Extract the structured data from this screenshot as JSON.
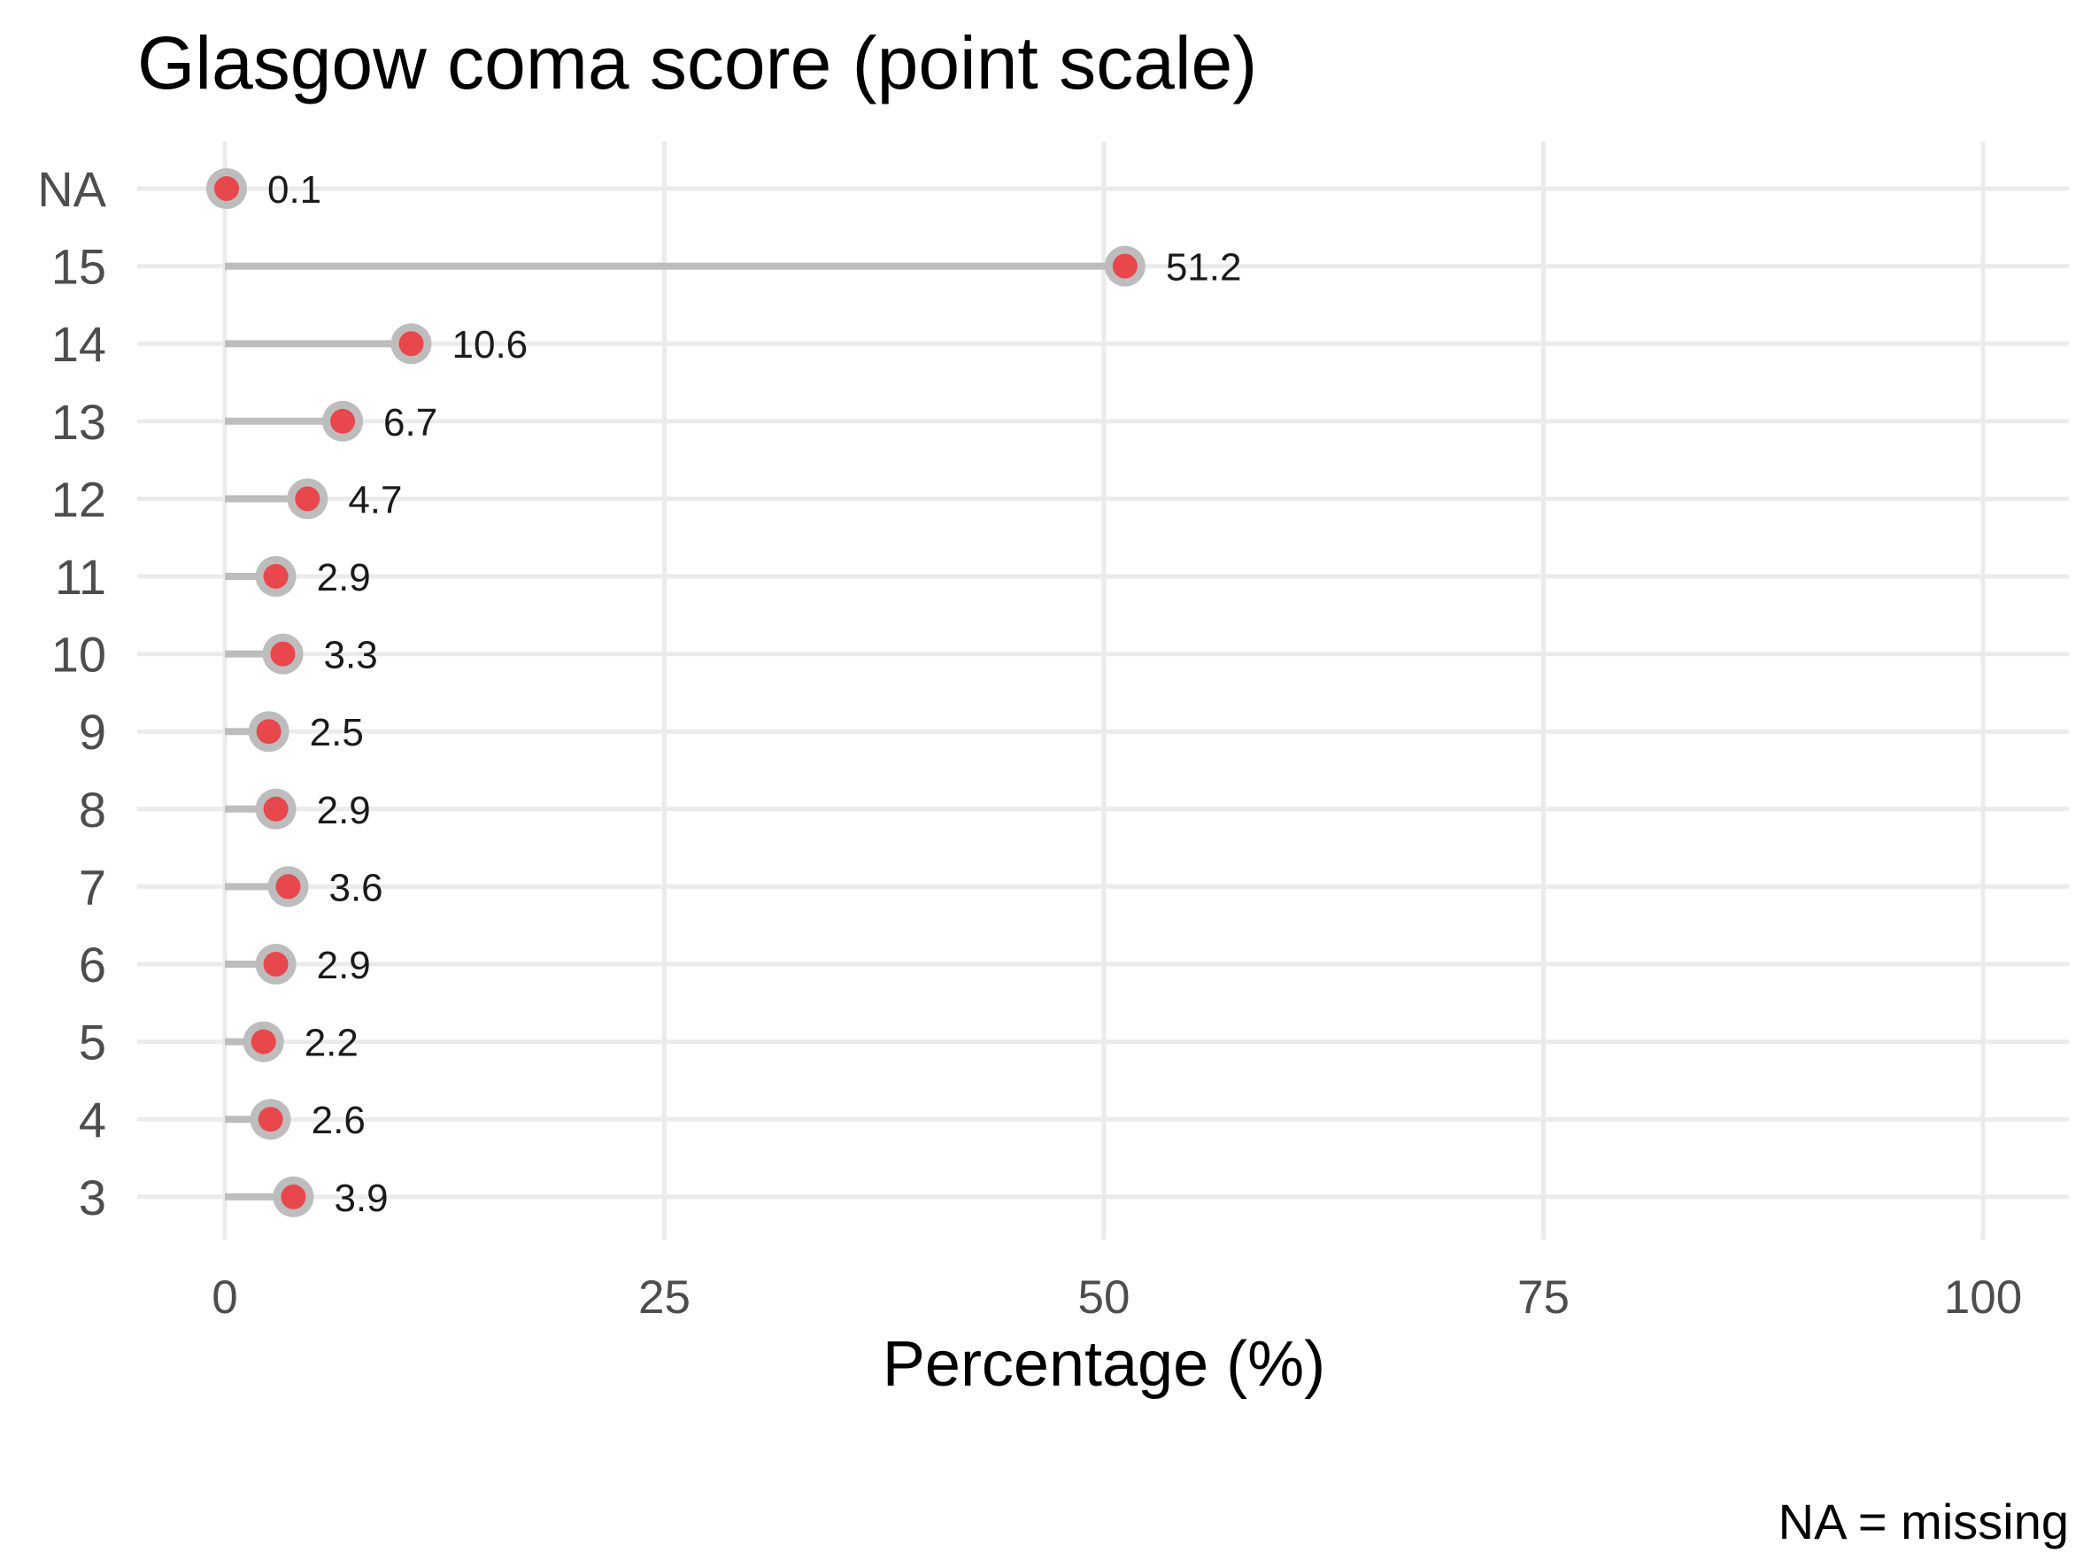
{
  "chart_data": {
    "type": "lollipop",
    "title": "Glasgow coma score (point scale)",
    "xlabel": "Percentage (%)",
    "ylabel": "",
    "xlim": [
      0,
      100
    ],
    "x_ticks": [
      0,
      25,
      50,
      75,
      100
    ],
    "grid": true,
    "legend": "none",
    "categories": [
      "NA",
      "15",
      "14",
      "13",
      "12",
      "11",
      "10",
      "9",
      "8",
      "7",
      "6",
      "5",
      "4",
      "3"
    ],
    "values": [
      0.1,
      51.2,
      10.6,
      6.7,
      4.7,
      2.9,
      3.3,
      2.5,
      2.9,
      3.6,
      2.9,
      2.2,
      2.6,
      3.9
    ],
    "labels": [
      "0.1",
      "51.2",
      "10.6",
      "6.7",
      "4.7",
      "2.9",
      "3.3",
      "2.5",
      "2.9",
      "3.6",
      "2.9",
      "2.2",
      "2.6",
      "3.9"
    ],
    "caption": "NA = missing",
    "colors": {
      "point_fill": "#e8474c",
      "point_ring": "#bdbdbd",
      "stem": "#bdbdbd",
      "gridline": "#ebebeb"
    }
  }
}
